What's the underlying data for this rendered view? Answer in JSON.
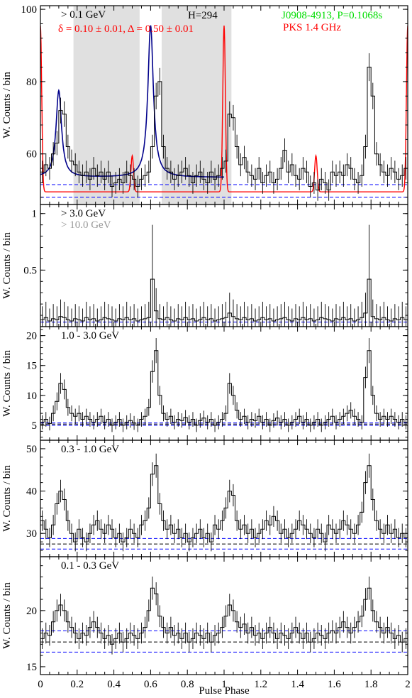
{
  "colors": {
    "histogram": "#000000",
    "radio_curve": "#ff0000",
    "fit_curve": "#00008b",
    "baseline_blue": "#0000ff",
    "baseline_black": "#000000",
    "shade": "#e0e0e0",
    "title_green": "#00dd00",
    "title_red": "#ff0000",
    "gray_label": "#999999"
  },
  "chart_data": [
    {
      "type": "line",
      "panel": "top",
      "energy_label": "> 0.1 GeV",
      "fit_label": "δ = 0.10 ± 0.01, Δ = 0.50 ± 0.01",
      "htest_label": "H=294",
      "pulsar_label": "J0908-4913, P=0.1068s",
      "radio_label": "PKS 1.4 GHz",
      "ylabel": "W. Counts / bin",
      "xlim": [
        0,
        2
      ],
      "ylim": [
        46,
        101
      ],
      "yticks": [
        60,
        80,
        100
      ],
      "shaded_phase": [
        [
          0.18,
          0.54
        ],
        [
          0.66,
          1.04
        ]
      ],
      "baselines": [
        {
          "y": 51.5,
          "color": "baseline_blue"
        },
        {
          "y": 48,
          "color": "baseline_blue"
        }
      ],
      "values": [
        55,
        57,
        56,
        60,
        63,
        72,
        71,
        62,
        58,
        57,
        55,
        54,
        55,
        53,
        56,
        54,
        55,
        53,
        55,
        51,
        52,
        53,
        52,
        55,
        54,
        53,
        51,
        53,
        54,
        55,
        62,
        76,
        80,
        62,
        56,
        55,
        53,
        54,
        55,
        56,
        54,
        52,
        54,
        55,
        53,
        52,
        55,
        53,
        54,
        56,
        58,
        71,
        70,
        62,
        57,
        59,
        55,
        54,
        53,
        56,
        52,
        54,
        55,
        52,
        53,
        56,
        61,
        55,
        57,
        54,
        53,
        56,
        55,
        51,
        52,
        50,
        53,
        52,
        50,
        55,
        54,
        55,
        54,
        57,
        56,
        53,
        52,
        54,
        62,
        84,
        76,
        60,
        57,
        55,
        54,
        56,
        55,
        53,
        54,
        56
      ],
      "radio_peaks": [
        {
          "x": 0.5,
          "height": 10
        },
        {
          "x": 1.0,
          "height": 46
        }
      ],
      "radio_base": 49.5,
      "fit_peaks": [
        {
          "x": 0.1,
          "height": 24
        },
        {
          "x": 0.6,
          "height": 42
        }
      ],
      "fit_base": 53.5
    },
    {
      "type": "line",
      "panel": "2",
      "energy_label": "> 3.0 GeV",
      "energy_label_2": "> 10.0 GeV",
      "ylabel": "W. Counts / bin",
      "xlim": [
        0,
        2
      ],
      "ylim": [
        0,
        1.08
      ],
      "yticks": [
        0.5,
        1
      ],
      "ytick_labels": [
        "0.5",
        "1"
      ],
      "baselines": [
        {
          "y": 0.04,
          "color": "baseline_blue"
        }
      ],
      "values": [
        0.06,
        0.08,
        0.05,
        0.07,
        0.06,
        0.09,
        0.08,
        0.06,
        0.05,
        0.07,
        0.06,
        0.05,
        0.08,
        0.06,
        0.07,
        0.05,
        0.06,
        0.08,
        0.07,
        0.06,
        0.05,
        0.07,
        0.06,
        0.08,
        0.06,
        0.07,
        0.05,
        0.06,
        0.07,
        0.08,
        0.42,
        0.14,
        0.07,
        0.06,
        0.08,
        0.06,
        0.05,
        0.07,
        0.06,
        0.08,
        0.06,
        0.07,
        0.05,
        0.06,
        0.08,
        0.06,
        0.07,
        0.05,
        0.06,
        0.07,
        0.08,
        0.12,
        0.09,
        0.07,
        0.06,
        0.08,
        0.06,
        0.07,
        0.05,
        0.06,
        0.08,
        0.06,
        0.07,
        0.05,
        0.06,
        0.07,
        0.08,
        0.06,
        0.05,
        0.07,
        0.06,
        0.08,
        0.06,
        0.07,
        0.05,
        0.06,
        0.08,
        0.07,
        0.06,
        0.05,
        0.07,
        0.06,
        0.08,
        0.06,
        0.07,
        0.05,
        0.06,
        0.08,
        0.12,
        0.42,
        0.09,
        0.07,
        0.06,
        0.08,
        0.06,
        0.05,
        0.07,
        0.06,
        0.08,
        0.06
      ]
    },
    {
      "type": "line",
      "panel": "3",
      "energy_label": "1.0 - 3.0 GeV",
      "ylabel": "W. Counts / bin",
      "xlim": [
        0,
        2
      ],
      "ylim": [
        2.5,
        21.5
      ],
      "yticks": [
        5,
        10,
        15,
        20
      ],
      "baselines": [
        {
          "y": 5.0,
          "color": "baseline_blue"
        },
        {
          "y": 5.4,
          "color": "baseline_blue"
        },
        {
          "y": 5.2,
          "color": "baseline_black"
        }
      ],
      "values": [
        5.5,
        6,
        5.3,
        7,
        9,
        12,
        11,
        8,
        7,
        6.5,
        7,
        6,
        6.5,
        6,
        5.5,
        6,
        6.5,
        5.5,
        6,
        5,
        5.5,
        6,
        5,
        5.5,
        5.8,
        5.4,
        5,
        6,
        6.5,
        8,
        14,
        17.5,
        10,
        7,
        6,
        6.5,
        5.5,
        6,
        5.8,
        6.3,
        5.5,
        6,
        5,
        5.8,
        6.2,
        5.5,
        6,
        5,
        5.5,
        6,
        7,
        12,
        10,
        7.5,
        6,
        6.5,
        5.5,
        6,
        5.8,
        6.5,
        5.5,
        6,
        5,
        5.8,
        6.2,
        5.5,
        6,
        5,
        5.5,
        6,
        6.5,
        5.5,
        6,
        5,
        5.5,
        6,
        5,
        5.5,
        6,
        6.5,
        5.5,
        6,
        6.5,
        7,
        7.5,
        6.5,
        6,
        5.5,
        13,
        17.5,
        10,
        7,
        6,
        6.5,
        6,
        6.5,
        6,
        5.5,
        6,
        5.5
      ]
    },
    {
      "type": "line",
      "panel": "4",
      "energy_label": "0.3 - 1.0 GeV",
      "ylabel": "W. Counts / bin",
      "xlim": [
        0,
        2
      ],
      "ylim": [
        24.5,
        52
      ],
      "yticks": [
        30,
        40,
        50
      ],
      "baselines": [
        {
          "y": 26.3,
          "color": "baseline_blue"
        },
        {
          "y": 28.8,
          "color": "baseline_blue"
        },
        {
          "y": 27.5,
          "color": "baseline_black"
        }
      ],
      "values": [
        33,
        31,
        29,
        32,
        37,
        40,
        38,
        33,
        30,
        28,
        31,
        29,
        28,
        30,
        32,
        33,
        31,
        30,
        32,
        31,
        29,
        30,
        28,
        29,
        31,
        30,
        29,
        32,
        33,
        36,
        44,
        46,
        37,
        33,
        31,
        32,
        30,
        31,
        29,
        30,
        28,
        29,
        30,
        31,
        29,
        30,
        28,
        32,
        31,
        33,
        36,
        40,
        39,
        33,
        31,
        32,
        30,
        31,
        29,
        30,
        31,
        33,
        32,
        34,
        33,
        30,
        31,
        29,
        30,
        31,
        33,
        32,
        31,
        30,
        29,
        31,
        30,
        28,
        32,
        31,
        30,
        31,
        33,
        32,
        31,
        30,
        32,
        35,
        42,
        46,
        38,
        33,
        31,
        30,
        32,
        30,
        31,
        29,
        30,
        29
      ]
    },
    {
      "type": "line",
      "panel": "bottom",
      "energy_label": "0.1 - 0.3 GeV",
      "ylabel": "W. Counts / bin",
      "xlabel": "Pulse Phase",
      "xlim": [
        0,
        2
      ],
      "ylim": [
        14.3,
        24.8
      ],
      "yticks": [
        15,
        20
      ],
      "xticks": [
        0,
        0.2,
        0.4,
        0.6,
        0.8,
        1,
        1.2,
        1.4,
        1.6,
        1.8,
        2
      ],
      "xtick_labels": [
        "0",
        "0.2",
        "0.4",
        "0.6",
        "0.8",
        "1",
        "1.2",
        "1.4",
        "1.6",
        "1.8",
        "2"
      ],
      "baselines": [
        {
          "y": 16.3,
          "color": "baseline_blue"
        },
        {
          "y": 18.2,
          "color": "baseline_blue"
        },
        {
          "y": 17.2,
          "color": "baseline_black"
        }
      ],
      "values": [
        17.5,
        18,
        17.8,
        19,
        20,
        20.5,
        20,
        19,
        18.5,
        18,
        17.5,
        18,
        17.8,
        18.5,
        19,
        18.5,
        18,
        17.5,
        17.8,
        17,
        17.5,
        18,
        17.2,
        17.5,
        18,
        17.8,
        17.5,
        18,
        18.5,
        20,
        22,
        21.5,
        19.5,
        18.5,
        18,
        18.5,
        17.8,
        18,
        17.5,
        18,
        17.2,
        17.5,
        18,
        17.8,
        17.5,
        18,
        17.2,
        17.8,
        18,
        18.5,
        19.5,
        20.5,
        20,
        19,
        18.5,
        18.8,
        18,
        18.5,
        17.8,
        18,
        17.5,
        18,
        18.5,
        18,
        17.5,
        18,
        17.8,
        17.5,
        18,
        18.5,
        18,
        17.5,
        18,
        17.2,
        17.5,
        18,
        17.8,
        17.5,
        18,
        18.2,
        18,
        18.5,
        19,
        18.5,
        18,
        18.5,
        19,
        19.5,
        21,
        22,
        20,
        19,
        18.5,
        18,
        18.5,
        18,
        17.5,
        17.8,
        17.2,
        17.5
      ]
    }
  ]
}
